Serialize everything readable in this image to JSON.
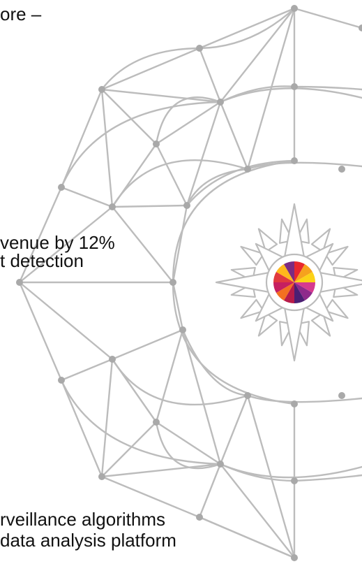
{
  "slide": {
    "texts": [
      "ore –",
      "venue by 12%",
      "t detection",
      "rveillance algorithms",
      "data analysis platform"
    ]
  },
  "graphic": {
    "name": "compass-rose-network",
    "line_color": "#bcbcbc",
    "node_color": "#a9a9a9",
    "logo_colors": [
      "#e8272e",
      "#f6a21d",
      "#fcd217",
      "#d63a8f",
      "#8e2a8b",
      "#4b1f73",
      "#b71c4a",
      "#f37021",
      "#c51f60",
      "#e03a3e",
      "#ffb81c",
      "#7b2b82"
    ]
  }
}
